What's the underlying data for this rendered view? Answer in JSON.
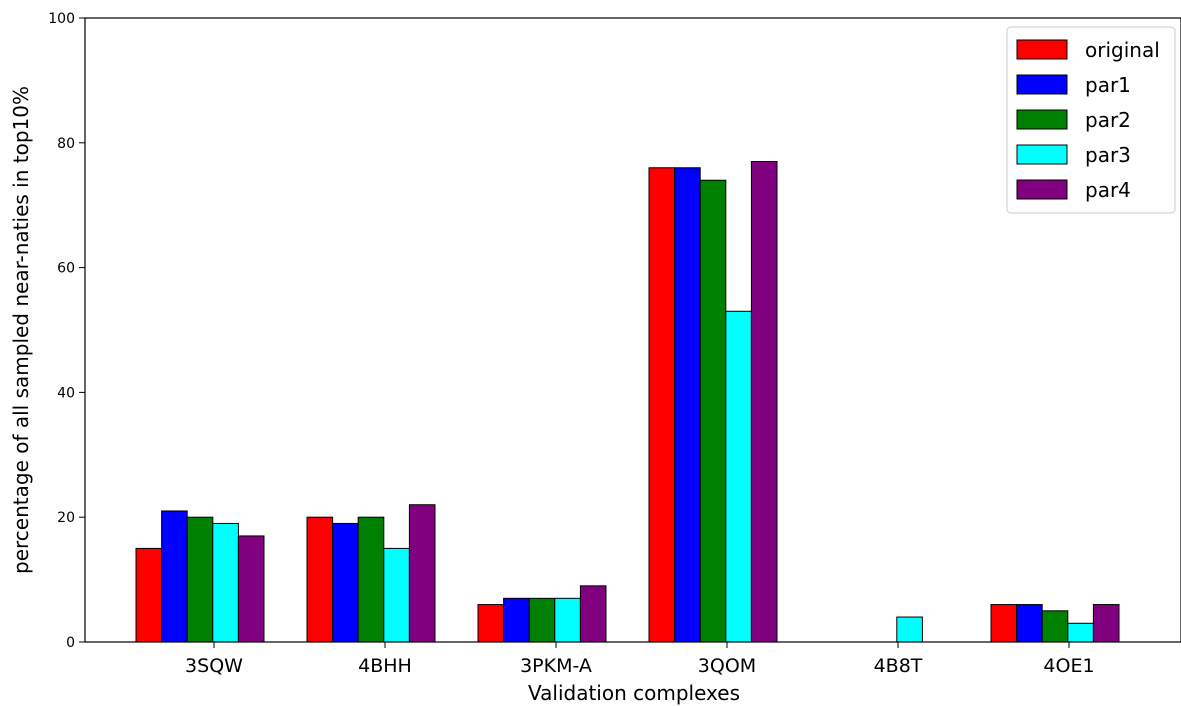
{
  "chart_data": {
    "type": "bar",
    "title": "",
    "xlabel": "Validation complexes",
    "ylabel": "percentage of all sampled near-naties in top10%",
    "ylim": [
      0,
      100
    ],
    "yticks": [
      0,
      20,
      40,
      60,
      80,
      100
    ],
    "grid": false,
    "legend_position": "top-right",
    "categories": [
      "3SQW",
      "4BHH",
      "3PKM-A",
      "3QOM",
      "4B8T",
      "4OE1"
    ],
    "series": [
      {
        "name": "original",
        "color": "#ff0000",
        "values": [
          15,
          20,
          6,
          76,
          0,
          6
        ]
      },
      {
        "name": "par1",
        "color": "#0000ff",
        "values": [
          21,
          19,
          7,
          76,
          0,
          6
        ]
      },
      {
        "name": "par2",
        "color": "#008000",
        "values": [
          20,
          20,
          7,
          74,
          0,
          5
        ]
      },
      {
        "name": "par3",
        "color": "#00ffff",
        "values": [
          19,
          15,
          7,
          53,
          4,
          3
        ]
      },
      {
        "name": "par4",
        "color": "#800080",
        "values": [
          17,
          22,
          9,
          77,
          0,
          6
        ]
      }
    ]
  }
}
